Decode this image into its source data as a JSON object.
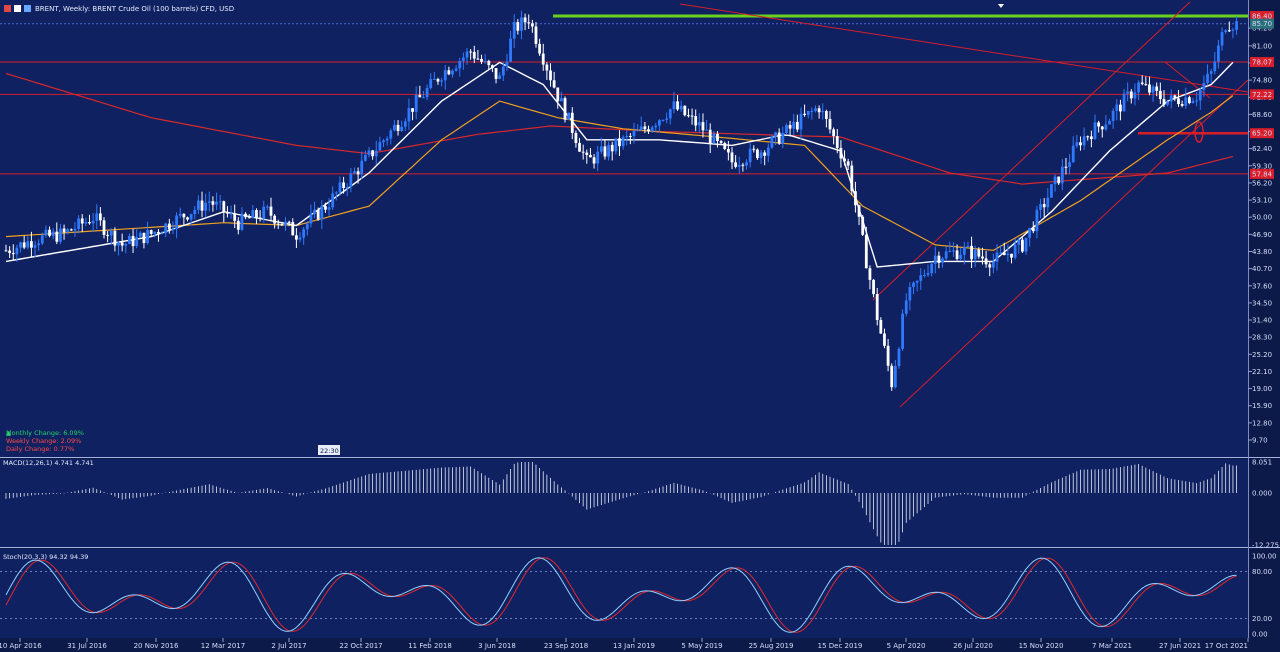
{
  "header": {
    "title": "BRENT, Weekly: BRENT Crude Oil (100 barrels) CFD, USD",
    "time_badge": "22:30"
  },
  "colors": {
    "background": "#0f2160",
    "bull_candle": "#2f79ff",
    "bear_candle": "#ffffff",
    "sma_fast": "#ffffff",
    "sma_mid": "#f0a020",
    "sma_slow": "#d8282a",
    "support_resistance": "#d81e2a",
    "top_line": "#69d21e",
    "macd_hist": "#e6eaf7",
    "stoch_k": "#8fd0ff",
    "stoch_d": "#e0282e"
  },
  "changes": {
    "monthly": "Monthly Change: 6.09%",
    "weekly": "Weekly Change: 2.09%",
    "daily": "Daily Change: 0.77%"
  },
  "price_labels": {
    "top": "86.40",
    "current": "85.70",
    "res_1": "78.07",
    "res_2": "72.22",
    "ssl": "65.20",
    "sup": "57.84"
  },
  "chart_data": {
    "type": "candlestick",
    "timeframe": "Weekly",
    "symbol": "BRENT",
    "main_y_ticks": [
      "84.20",
      "81.00",
      "77.90",
      "74.80",
      "71.70",
      "68.60",
      "65.50",
      "62.40",
      "59.30",
      "56.20",
      "53.10",
      "50.00",
      "46.90",
      "43.80",
      "40.70",
      "37.60",
      "34.50",
      "31.40",
      "28.30",
      "25.20",
      "22.10",
      "19.00",
      "15.90",
      "12.80",
      "9.70"
    ],
    "x_ticks": [
      "10 Apr 2016",
      "31 Jul 2016",
      "20 Nov 2016",
      "12 Mar 2017",
      "2 Jul 2017",
      "22 Oct 2017",
      "11 Feb 2018",
      "3 Jun 2018",
      "23 Sep 2018",
      "13 Jan 2019",
      "5 May 2019",
      "25 Aug 2019",
      "15 Dec 2019",
      "5 Apr 2020",
      "26 Jul 2020",
      "15 Nov 2020",
      "7 Mar 2021",
      "27 Jun 2021",
      "17 Oct 2021"
    ],
    "ylim": [
      6,
      87.5
    ],
    "horizontal_levels": [
      86.4,
      78.07,
      72.22,
      57.84,
      65.2
    ],
    "close_path": [
      [
        0,
        44
      ],
      [
        8,
        46
      ],
      [
        16,
        47
      ],
      [
        24,
        50
      ],
      [
        32,
        45
      ],
      [
        40,
        47
      ],
      [
        48,
        50
      ],
      [
        56,
        53
      ],
      [
        64,
        49
      ],
      [
        72,
        51
      ],
      [
        80,
        47
      ],
      [
        88,
        52
      ],
      [
        96,
        58
      ],
      [
        104,
        64
      ],
      [
        112,
        70
      ],
      [
        120,
        76
      ],
      [
        128,
        80
      ],
      [
        136,
        75
      ],
      [
        140,
        84
      ],
      [
        144,
        86
      ],
      [
        152,
        72
      ],
      [
        160,
        60
      ],
      [
        168,
        63
      ],
      [
        176,
        66
      ],
      [
        184,
        70
      ],
      [
        192,
        66
      ],
      [
        200,
        60
      ],
      [
        208,
        62
      ],
      [
        216,
        66
      ],
      [
        224,
        70
      ],
      [
        232,
        59
      ],
      [
        240,
        32
      ],
      [
        244,
        20
      ],
      [
        248,
        35
      ],
      [
        256,
        43
      ],
      [
        264,
        44
      ],
      [
        272,
        42
      ],
      [
        280,
        45
      ],
      [
        288,
        55
      ],
      [
        296,
        64
      ],
      [
        304,
        68
      ],
      [
        312,
        74
      ],
      [
        320,
        71
      ],
      [
        328,
        72
      ],
      [
        332,
        76
      ],
      [
        336,
        85
      ]
    ],
    "sma_fast": [
      [
        0,
        42
      ],
      [
        40,
        46.5
      ],
      [
        60,
        51
      ],
      [
        80,
        48.5
      ],
      [
        100,
        58
      ],
      [
        120,
        71
      ],
      [
        136,
        78
      ],
      [
        148,
        74
      ],
      [
        160,
        64
      ],
      [
        180,
        64
      ],
      [
        200,
        63
      ],
      [
        215,
        65
      ],
      [
        230,
        62
      ],
      [
        240,
        41
      ],
      [
        256,
        42
      ],
      [
        272,
        42
      ],
      [
        288,
        51
      ],
      [
        304,
        62
      ],
      [
        320,
        71
      ],
      [
        332,
        74
      ],
      [
        338,
        78
      ]
    ],
    "sma_mid": [
      [
        0,
        46.5
      ],
      [
        60,
        49
      ],
      [
        80,
        48.5
      ],
      [
        100,
        52
      ],
      [
        120,
        64
      ],
      [
        136,
        71
      ],
      [
        152,
        68
      ],
      [
        170,
        66
      ],
      [
        196,
        64.5
      ],
      [
        220,
        63
      ],
      [
        236,
        52
      ],
      [
        256,
        45
      ],
      [
        272,
        44
      ],
      [
        296,
        53
      ],
      [
        320,
        64
      ],
      [
        332,
        69
      ],
      [
        338,
        72
      ]
    ],
    "sma_slow": [
      [
        0,
        76
      ],
      [
        40,
        68
      ],
      [
        80,
        63
      ],
      [
        100,
        61.5
      ],
      [
        130,
        65
      ],
      [
        150,
        66.5
      ],
      [
        180,
        65.5
      ],
      [
        230,
        64.5
      ],
      [
        260,
        58
      ],
      [
        280,
        56
      ],
      [
        300,
        57
      ],
      [
        320,
        58
      ],
      [
        338,
        61
      ]
    ],
    "macd": {
      "name": "MACD(12,26,1) 4.741 4.741",
      "y_ticks": [
        "8.051",
        "0.000",
        "-12.275"
      ]
    },
    "stoch": {
      "name": "Stoch(20,3,3) 94.32 94.39",
      "y_ticks": [
        "100.00",
        "80.00",
        "20.00",
        "0.00"
      ]
    }
  }
}
